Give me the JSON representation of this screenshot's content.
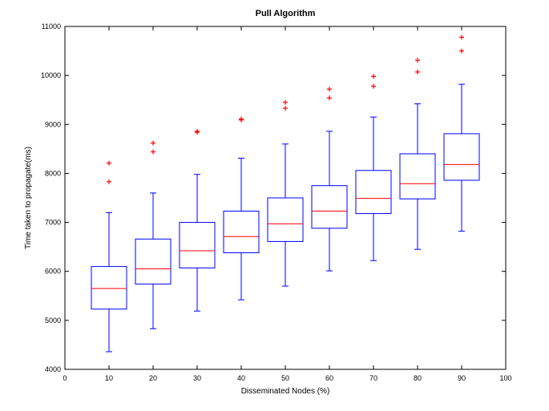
{
  "chart_data": {
    "type": "box",
    "title": "Pull Algorithm",
    "xlabel": "Disseminated Nodes (%)",
    "ylabel": "Time taken to propagate(ms)",
    "xlim": [
      0,
      100
    ],
    "ylim": [
      4000,
      11000
    ],
    "xticks": [
      0,
      10,
      20,
      30,
      40,
      50,
      60,
      70,
      80,
      90,
      100
    ],
    "yticks": [
      4000,
      5000,
      6000,
      7000,
      8000,
      9000,
      10000,
      11000
    ],
    "grid": false,
    "box_color": "#0000ff",
    "median_color": "#ff0000",
    "outlier_color": "#ff0000",
    "boxes": [
      {
        "x": 10,
        "whisker_low": 4360,
        "q1": 5230,
        "median": 5650,
        "q3": 6100,
        "whisker_high": 7200,
        "outliers": [
          7830,
          8210
        ]
      },
      {
        "x": 20,
        "whisker_low": 4830,
        "q1": 5740,
        "median": 6050,
        "q3": 6660,
        "whisker_high": 7600,
        "outliers": [
          8440,
          8620
        ]
      },
      {
        "x": 30,
        "whisker_low": 5190,
        "q1": 6070,
        "median": 6420,
        "q3": 7000,
        "whisker_high": 7980,
        "outliers": [
          8840,
          8860
        ]
      },
      {
        "x": 40,
        "whisker_low": 5420,
        "q1": 6380,
        "median": 6710,
        "q3": 7230,
        "whisker_high": 8310,
        "outliers": [
          9090,
          9110
        ]
      },
      {
        "x": 50,
        "whisker_low": 5700,
        "q1": 6610,
        "median": 6970,
        "q3": 7500,
        "whisker_high": 8600,
        "outliers": [
          9330,
          9450
        ]
      },
      {
        "x": 60,
        "whisker_low": 6010,
        "q1": 6880,
        "median": 7230,
        "q3": 7750,
        "whisker_high": 8860,
        "outliers": [
          9540,
          9720
        ]
      },
      {
        "x": 70,
        "whisker_low": 6220,
        "q1": 7180,
        "median": 7490,
        "q3": 8060,
        "whisker_high": 9150,
        "outliers": [
          9780,
          9980
        ]
      },
      {
        "x": 80,
        "whisker_low": 6450,
        "q1": 7480,
        "median": 7790,
        "q3": 8400,
        "whisker_high": 9420,
        "outliers": [
          10070,
          10310
        ]
      },
      {
        "x": 90,
        "whisker_low": 6820,
        "q1": 7860,
        "median": 8180,
        "q3": 8810,
        "whisker_high": 9820,
        "outliers": [
          10500,
          10780
        ]
      }
    ]
  }
}
